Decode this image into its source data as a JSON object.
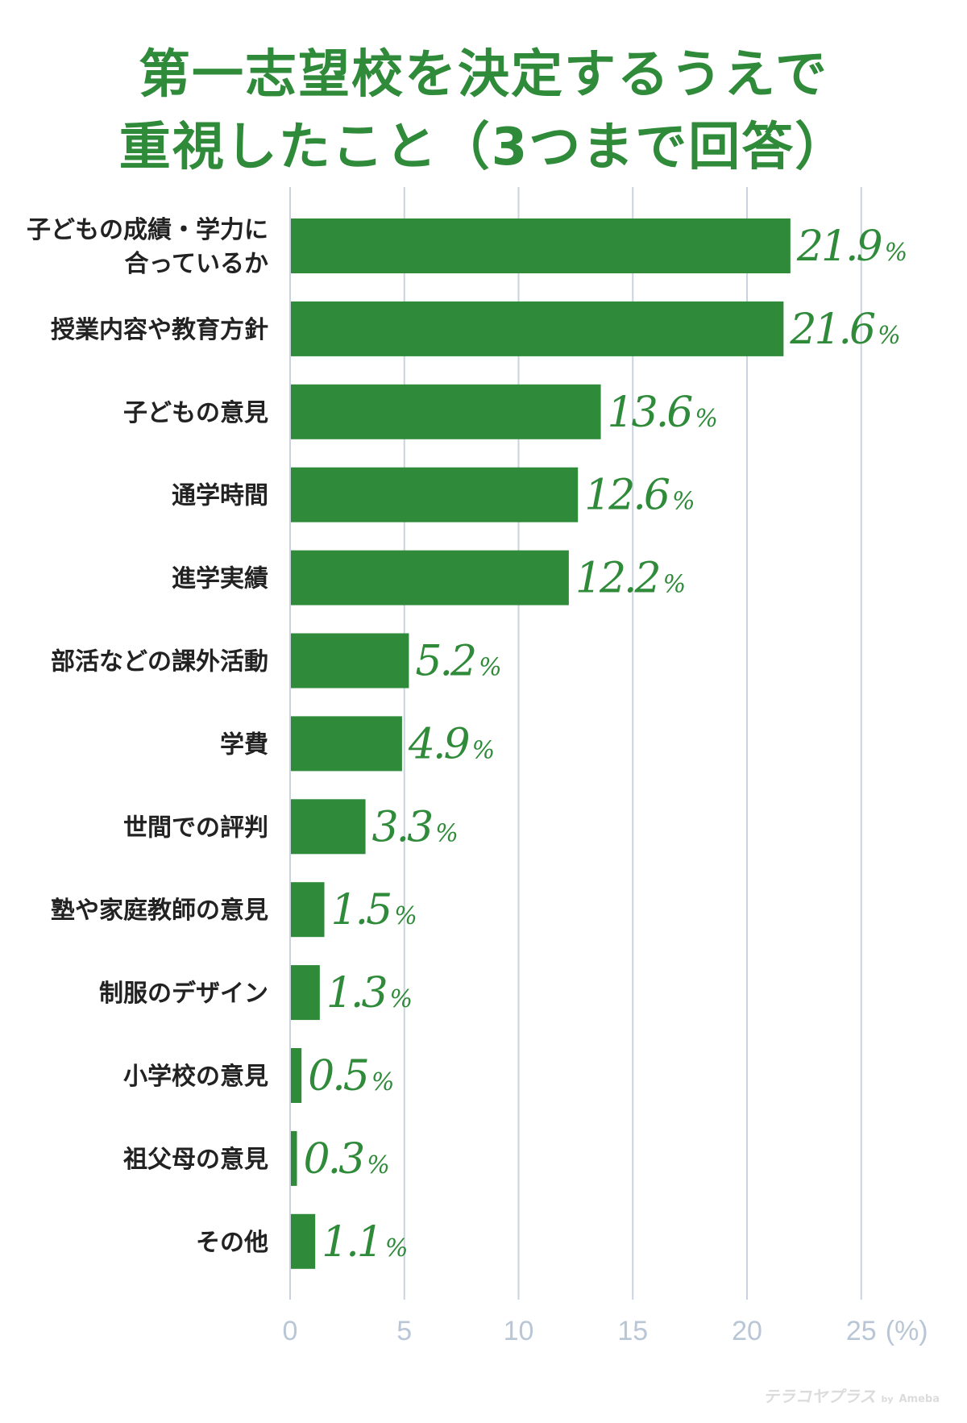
{
  "chart_data": {
    "type": "bar",
    "orientation": "horizontal",
    "title_lines": [
      "第一志望校を決定するうえで",
      "重視したこと（3つまで回答）"
    ],
    "categories": [
      [
        "子どもの成績・学力に",
        "合っているか"
      ],
      [
        "授業内容や教育方針"
      ],
      [
        "子どもの意見"
      ],
      [
        "通学時間"
      ],
      [
        "進学実績"
      ],
      [
        "部活などの課外活動"
      ],
      [
        "学費"
      ],
      [
        "世間での評判"
      ],
      [
        "塾や家庭教師の意見"
      ],
      [
        "制服のデザイン"
      ],
      [
        "小学校の意見"
      ],
      [
        "祖父母の意見"
      ],
      [
        "その他"
      ]
    ],
    "values": [
      21.9,
      21.6,
      13.6,
      12.6,
      12.2,
      5.2,
      4.9,
      3.3,
      1.5,
      1.3,
      0.5,
      0.3,
      1.1
    ],
    "value_labels": [
      "21.9",
      "21.6",
      "13.6",
      "12.6",
      "12.2",
      "5.2",
      "4.9",
      "3.3",
      "1.5",
      "1.3",
      "0.5",
      "0.3",
      "1.1"
    ],
    "value_unit": "%",
    "xlim": [
      0,
      25
    ],
    "x_ticks": [
      "0",
      "5",
      "10",
      "15",
      "20",
      "25"
    ],
    "x_unit_label": "(%)",
    "grid": true,
    "bar_color": "#2f8a3a",
    "grid_color": "#c9d3df"
  },
  "watermark": {
    "main": "テラコヤプラス",
    "by": "by",
    "brand": "Ameba"
  }
}
